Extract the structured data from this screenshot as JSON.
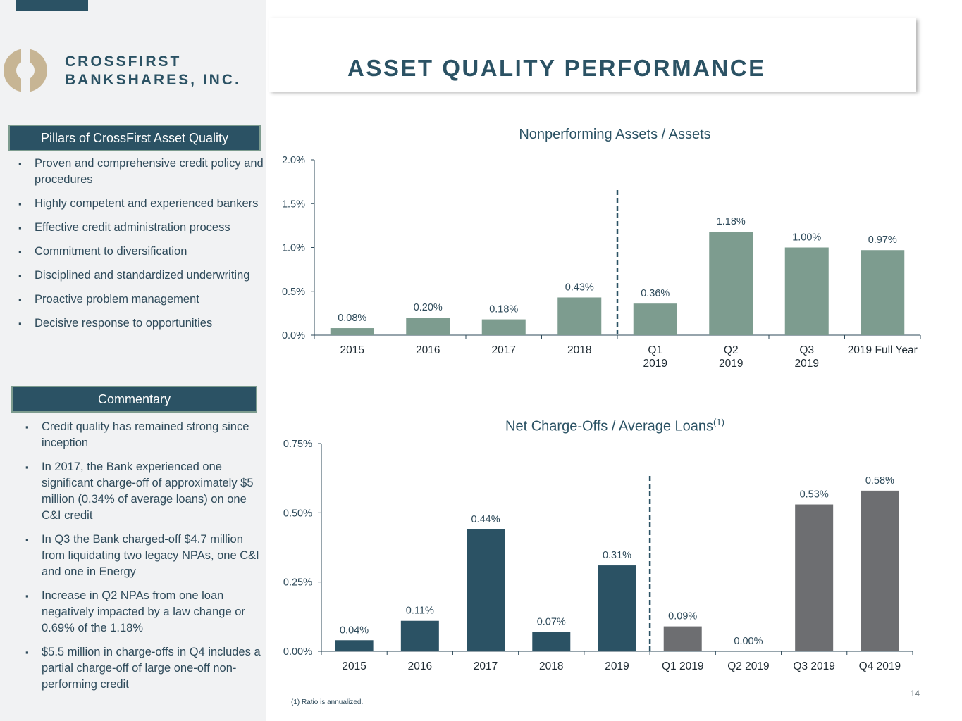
{
  "company": {
    "name_line1": "CROSSFIRST",
    "name_line2": "BANKSHARES, INC."
  },
  "page_title": "ASSET QUALITY PERFORMANCE",
  "pillars": {
    "header": "Pillars of CrossFirst Asset Quality",
    "items": [
      "Proven and comprehensive credit policy and procedures",
      "Highly competent and experienced bankers",
      "Effective credit administration process",
      "Commitment to diversification",
      "Disciplined and standardized underwriting",
      "Proactive problem management",
      "Decisive response to opportunities"
    ]
  },
  "commentary": {
    "header": "Commentary",
    "items": [
      "Credit quality has remained strong since inception",
      "In 2017, the Bank experienced one significant charge-off of approximately $5 million (0.34% of average loans) on one C&I credit",
      "In Q3 the Bank charged-off $4.7 million from liquidating two legacy NPAs, one C&I and one in Energy",
      "Increase in Q2 NPAs from one loan negatively impacted by a law change or 0.69% of the 1.18%",
      "$5.5 million in charge-offs in Q4 includes a partial charge-off of large one-off non-performing credit"
    ]
  },
  "colors": {
    "navy": "#2b5264",
    "sage": "#7d9c8f",
    "gray": "#6d6e71",
    "text": "#2e4a5a"
  },
  "chart_data": [
    {
      "type": "bar",
      "title": "Nonperforming Assets / Assets",
      "categories": [
        [
          "2015"
        ],
        [
          "2016"
        ],
        [
          "2017"
        ],
        [
          "2018"
        ],
        [
          "Q1",
          "2019"
        ],
        [
          "Q2",
          "2019"
        ],
        [
          "Q3",
          "2019"
        ],
        [
          "2019 Full Year"
        ]
      ],
      "values": [
        0.08,
        0.2,
        0.18,
        0.43,
        0.36,
        1.18,
        1.0,
        0.97
      ],
      "labels": [
        "0.08%",
        "0.20%",
        "0.18%",
        "0.43%",
        "0.36%",
        "1.18%",
        "1.00%",
        "0.97%"
      ],
      "ylim": [
        0,
        2.0
      ],
      "yticks": [
        0,
        0.5,
        1.0,
        1.5,
        2.0
      ],
      "ytick_labels": [
        "0.0%",
        "0.5%",
        "1.0%",
        "1.5%",
        "2.0%"
      ],
      "color": "#7d9c8f",
      "divider_after_index": 3
    },
    {
      "type": "bar",
      "title": "Net Charge-Offs / Average Loans",
      "title_superscript": "(1)",
      "categories": [
        [
          "2015"
        ],
        [
          "2016"
        ],
        [
          "2017"
        ],
        [
          "2018"
        ],
        [
          "2019"
        ],
        [
          "Q1 2019"
        ],
        [
          "Q2 2019"
        ],
        [
          "Q3 2019"
        ],
        [
          "Q4 2019"
        ]
      ],
      "values": [
        0.04,
        0.11,
        0.44,
        0.07,
        0.31,
        0.09,
        0.0,
        0.53,
        0.58
      ],
      "labels": [
        "0.04%",
        "0.11%",
        "0.44%",
        "0.07%",
        "0.31%",
        "0.09%",
        "0.00%",
        "0.53%",
        "0.58%"
      ],
      "ylim": [
        0,
        0.75
      ],
      "yticks": [
        0,
        0.25,
        0.5,
        0.75
      ],
      "ytick_labels": [
        "0.00%",
        "0.25%",
        "0.50%",
        "0.75%"
      ],
      "series_colors": [
        "#2b5264",
        "#2b5264",
        "#2b5264",
        "#2b5264",
        "#2b5264",
        "#6d6e71",
        "#6d6e71",
        "#6d6e71",
        "#6d6e71"
      ],
      "divider_after_index": 4
    }
  ],
  "footnote": "(1)    Ratio is annualized.",
  "page_number": "14"
}
